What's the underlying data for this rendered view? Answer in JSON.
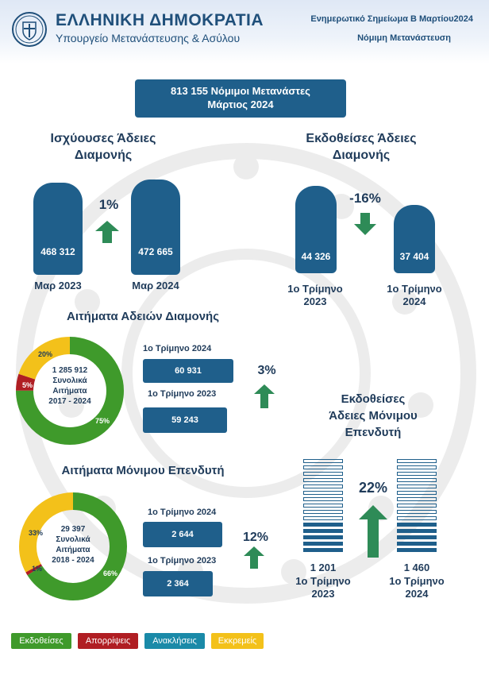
{
  "header": {
    "org_title": "ΕΛΛΗΝΙΚΗ ΔΗΜΟΚΡΑΤΙΑ",
    "ministry": "Υπουργείο Μετανάστευσης & Ασύλου",
    "bulletin": "Ενημερωτικό Σημείωμα Β Μαρτίου2024",
    "subject": "Νόμιμη Μετανάστευση"
  },
  "banner": {
    "line1": "813 155 Νόμιμοι Μετανάστες",
    "line2": "Μάρτιος 2024"
  },
  "valid_permits": {
    "title_line1": "Ισχύουσες Άδειες",
    "title_line2": "Διαμονής",
    "left_value": "468 312",
    "left_label": "Μαρ 2023",
    "right_value": "472 665",
    "right_label": "Μαρ 2024",
    "change": "1%"
  },
  "issued_permits": {
    "title_line1": "Εκδοθείσες Άδειες",
    "title_line2": "Διαμονής",
    "left_value": "44 326",
    "left_label_line1": "1ο Τρίμηνο",
    "left_label_line2": "2023",
    "right_value": "37 404",
    "right_label_line1": "1ο Τρίμηνο",
    "right_label_line2": "2024",
    "change": "-16%"
  },
  "residence_applications": {
    "title": "Αιτήματα Αδειών Διαμονής",
    "donut_center": [
      "1 285 912",
      "Συνολικά",
      "Αιτήματα",
      "2017 - 2024"
    ],
    "pct_issued": "75%",
    "pct_rejected": "5%",
    "pct_pending": "20%",
    "q1_2024_label": "1ο Τρίμηνο 2024",
    "q1_2024_value": "60 931",
    "q1_2023_label": "1ο Τρίμηνο 2023",
    "q1_2023_value": "59 243",
    "change": "3%"
  },
  "investor_permits": {
    "title_line1": "Εκδοθείσες",
    "title_line2": "Άδειες Μόνιμου",
    "title_line3": "Επενδυτή",
    "left_value": "1 201",
    "left_label_line1": "1ο Τρίμηνο",
    "left_label_line2": "2023",
    "right_value": "1 460",
    "right_label_line1": "1ο Τρίμηνο",
    "right_label_line2": "2024",
    "change": "22%"
  },
  "investor_applications": {
    "title": "Αιτήματα Μόνιμου Επενδυτή",
    "donut_center": [
      "29 397",
      "Συνολικά",
      "Αιτήματα",
      "2018 - 2024"
    ],
    "pct_issued": "66%",
    "pct_rejected": "1%",
    "pct_pending": "33%",
    "q1_2024_label": "1ο Τρίμηνο 2024",
    "q1_2024_value": "2 644",
    "q1_2023_label": "1ο Τρίμηνο 2023",
    "q1_2023_value": "2 364",
    "change": "12%"
  },
  "legend": {
    "issued": "Εκδοθείσες",
    "rejected": "Απορρίψεις",
    "revoked": "Ανακλήσεις",
    "pending": "Εκκρεμείς"
  },
  "colors": {
    "issued": "#3f9a2b",
    "rejected": "#b01e23",
    "revoked": "#1a8aa8",
    "pending": "#f3c11a",
    "navy": "#1f5f8b",
    "arrow_green": "#2e8b57"
  }
}
